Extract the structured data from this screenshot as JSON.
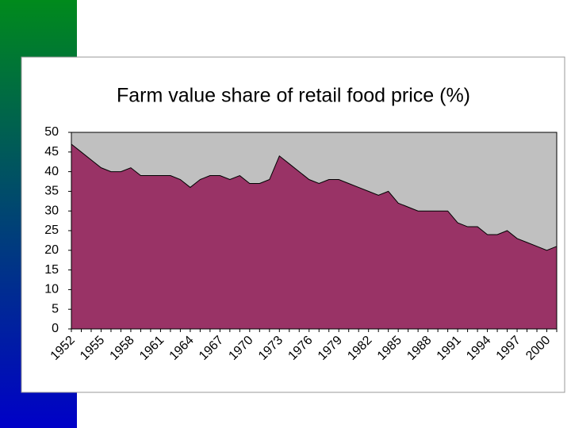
{
  "chart_data": {
    "type": "area",
    "title": "Farm value share of retail food price (%)",
    "categories": [
      "1952",
      null,
      null,
      "1955",
      null,
      null,
      "1958",
      null,
      null,
      "1961",
      null,
      null,
      "1964",
      null,
      null,
      "1967",
      null,
      null,
      "1970",
      null,
      null,
      "1973",
      null,
      null,
      "1976",
      null,
      null,
      "1979",
      null,
      null,
      "1982",
      null,
      null,
      "1985",
      null,
      null,
      "1988",
      null,
      null,
      "1991",
      null,
      null,
      "1994",
      null,
      null,
      "1997",
      null,
      null,
      "2000",
      null
    ],
    "values": [
      47,
      45,
      43,
      41,
      40,
      40,
      41,
      39,
      39,
      39,
      39,
      38,
      36,
      38,
      39,
      39,
      38,
      39,
      37,
      37,
      38,
      44,
      42,
      40,
      38,
      37,
      38,
      38,
      37,
      36,
      35,
      34,
      35,
      32,
      31,
      30,
      30,
      30,
      30,
      27,
      26,
      26,
      24,
      24,
      25,
      23,
      22,
      21,
      20,
      21
    ],
    "color": "#993366",
    "plot_background": "#c0c0c0",
    "ylim": [
      0,
      50
    ],
    "yticks": [
      0,
      5,
      10,
      15,
      20,
      25,
      30,
      35,
      40,
      45,
      50
    ]
  }
}
